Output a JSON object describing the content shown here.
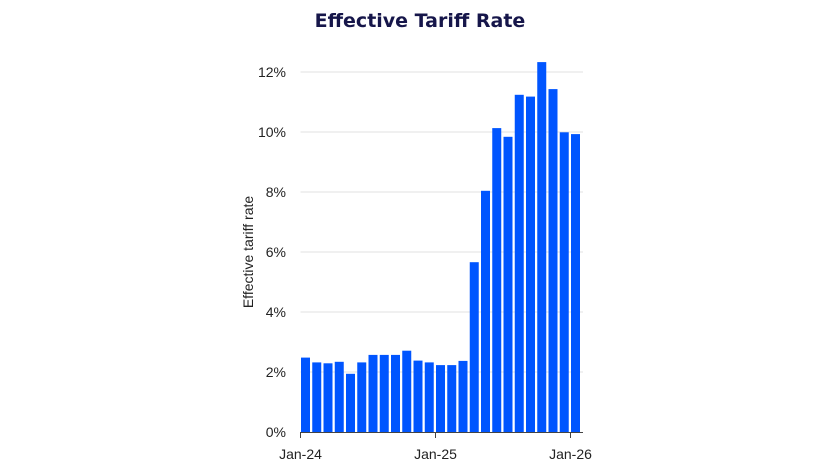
{
  "chart_data": {
    "type": "bar",
    "title": "Effective Tariff Rate",
    "xlabel": "",
    "ylabel": "Effective tariff rate",
    "ylim": [
      0,
      12
    ],
    "yticks": [
      "0%",
      "2%",
      "4%",
      "6%",
      "8%",
      "10%",
      "12%"
    ],
    "xticks": [
      "Jan-24",
      "Jan-25",
      "Jan-26"
    ],
    "grid": true,
    "bar_color": "#0055ff",
    "categories": [
      "Jan-24",
      "Feb-24",
      "Mar-24",
      "Apr-24",
      "May-24",
      "Jun-24",
      "Jul-24",
      "Aug-24",
      "Sep-24",
      "Oct-24",
      "Nov-24",
      "Dec-24",
      "Jan-25",
      "Feb-25",
      "Mar-25",
      "Apr-25",
      "May-25",
      "Jun-25",
      "Jul-25",
      "Aug-25",
      "Sep-25",
      "Oct-25",
      "Nov-25",
      "Dec-25",
      "Jan-26"
    ],
    "values": [
      2.48,
      2.32,
      2.29,
      2.34,
      1.94,
      2.32,
      2.57,
      2.57,
      2.57,
      2.71,
      2.38,
      2.32,
      2.23,
      2.23,
      2.37,
      5.66,
      8.04,
      10.13,
      9.84,
      11.24,
      11.18,
      12.33,
      11.43,
      9.99,
      9.93
    ]
  }
}
